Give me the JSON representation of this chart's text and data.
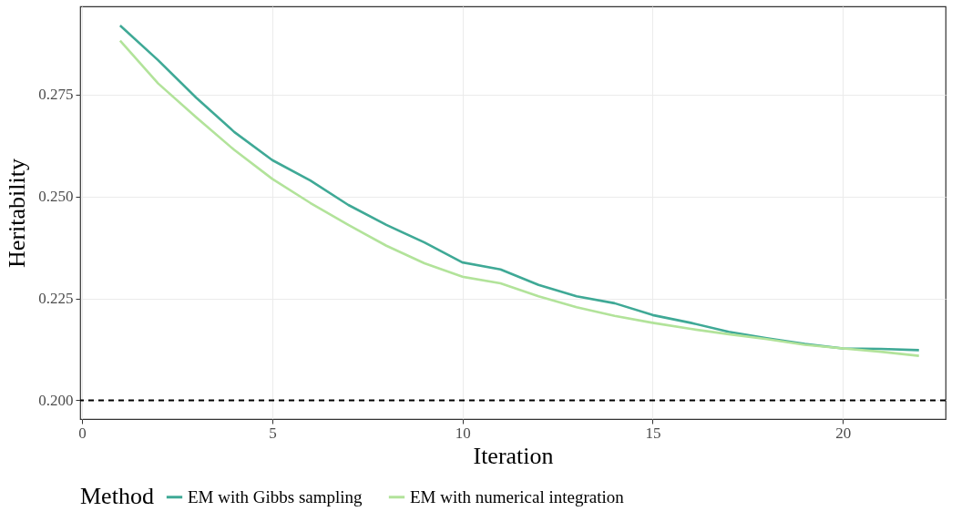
{
  "chart_data": {
    "type": "line",
    "xlabel": "Iteration",
    "ylabel": "Heritability",
    "legend_title": "Method",
    "x": [
      1,
      2,
      3,
      4,
      5,
      6,
      7,
      8,
      9,
      10,
      11,
      12,
      13,
      14,
      15,
      16,
      17,
      18,
      19,
      20,
      21,
      22
    ],
    "series": [
      {
        "name": "EM with Gibbs sampling",
        "color": "#3fa996",
        "values": [
          0.2919,
          0.2834,
          0.2742,
          0.2658,
          0.2589,
          0.2539,
          0.2479,
          0.243,
          0.2387,
          0.2338,
          0.2321,
          0.2283,
          0.2255,
          0.2238,
          0.2209,
          0.219,
          0.2168,
          0.2152,
          0.2138,
          0.2127,
          0.2126,
          0.2123
        ]
      },
      {
        "name": "EM with numerical integration",
        "color": "#b2e39a",
        "values": [
          0.2882,
          0.2777,
          0.2694,
          0.2614,
          0.2543,
          0.2484,
          0.243,
          0.2379,
          0.2336,
          0.2303,
          0.2287,
          0.2255,
          0.2228,
          0.2207,
          0.219,
          0.2175,
          0.2162,
          0.215,
          0.2136,
          0.2127,
          0.2119,
          0.2109
        ]
      }
    ],
    "xlim": [
      -0.05,
      22.7
    ],
    "ylim": [
      0.1954,
      0.2966
    ],
    "xticks": [
      0,
      5,
      10,
      15,
      20
    ],
    "yticks": [
      {
        "value": 0.2,
        "label": "0.200"
      },
      {
        "value": 0.225,
        "label": "0.225"
      },
      {
        "value": 0.25,
        "label": "0.250"
      },
      {
        "value": 0.275,
        "label": "0.275"
      }
    ],
    "ref_lines": [
      {
        "axis": "y",
        "value": 0.2,
        "color": "#000000",
        "line_style": "dashed"
      }
    ],
    "grid": true,
    "legend": "bottom",
    "line_style": "solid",
    "marker": "none"
  }
}
